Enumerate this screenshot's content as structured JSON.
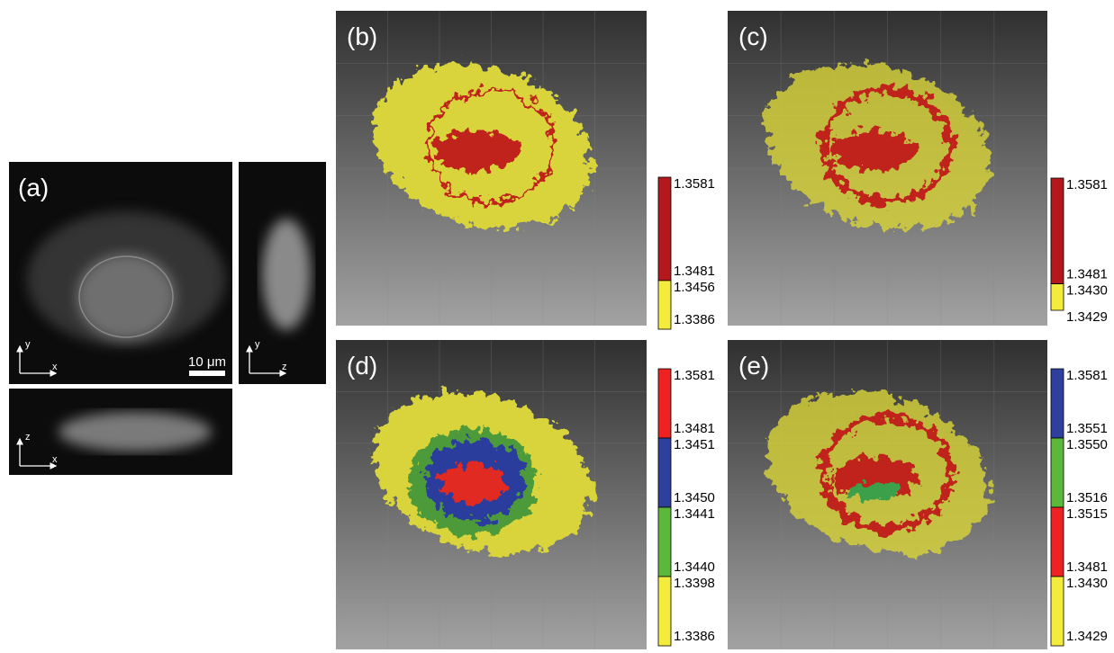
{
  "panel_a": {
    "label": "(a)",
    "scale_bar": "10 μm",
    "views": [
      {
        "vertical": "y",
        "horizontal": "x"
      },
      {
        "vertical": "y",
        "horizontal": "z"
      },
      {
        "vertical": "z",
        "horizontal": "x"
      }
    ]
  },
  "panels": [
    {
      "label": "(b)",
      "colorbar": [
        {
          "color": "#b3191c",
          "top": "1.3581",
          "bottom": "1.3481"
        },
        {
          "color": "#f3ec3c",
          "top": "1.3456",
          "bottom": "1.3386"
        }
      ]
    },
    {
      "label": "(c)",
      "colorbar": [
        {
          "color": "#b3191c",
          "top": "1.3581",
          "bottom": "1.3481"
        },
        {
          "color": "#f3ec3c",
          "top": "1.3430",
          "bottom": "1.3429"
        }
      ]
    },
    {
      "label": "(d)",
      "colorbar": [
        {
          "color": "#ee2222",
          "top": "1.3581",
          "bottom": "1.3481"
        },
        {
          "color": "#2e3f9e",
          "top": "1.3451",
          "bottom": "1.3450"
        },
        {
          "color": "#5cb83a",
          "top": "1.3441",
          "bottom": "1.3440"
        },
        {
          "color": "#f3ec3c",
          "top": "1.3398",
          "bottom": "1.3386"
        }
      ]
    },
    {
      "label": "(e)",
      "colorbar": [
        {
          "color": "#2e3f9e",
          "top": "1.3581",
          "bottom": "1.3551"
        },
        {
          "color": "#5cb83a",
          "top": "1.3550",
          "bottom": "1.3516"
        },
        {
          "color": "#ee2222",
          "top": "1.3515",
          "bottom": "1.3481"
        },
        {
          "color": "#f3ec3c",
          "top": "1.3430",
          "bottom": "1.3429"
        }
      ]
    }
  ]
}
